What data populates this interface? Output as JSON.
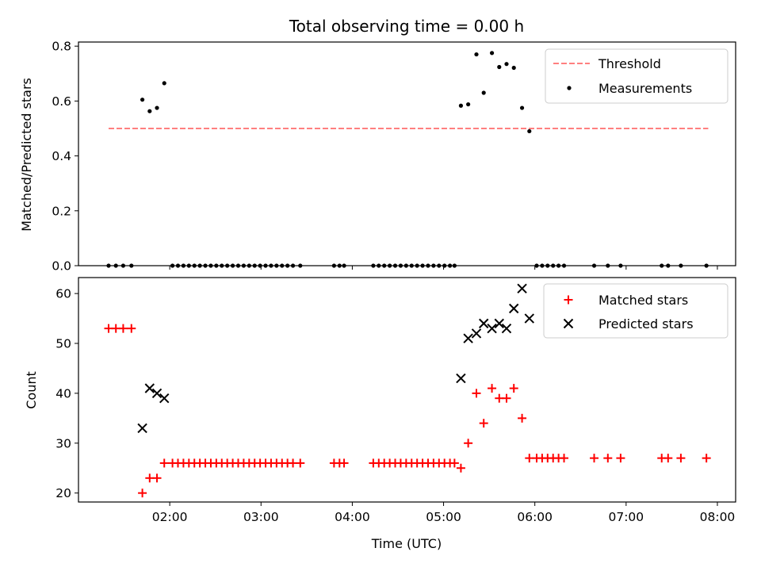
{
  "figure": {
    "title": "Total observing time = 0.00 h"
  },
  "chart_data": [
    {
      "type": "scatter",
      "ylabel": "Matched/Predicted stars",
      "xlim": [
        1.0,
        8.2
      ],
      "ylim": [
        0,
        0.815
      ],
      "xticks": [
        2,
        3,
        4,
        5,
        6,
        7,
        8
      ],
      "yticks": [
        {
          "v": 0.0,
          "label": "0.0"
        },
        {
          "v": 0.2,
          "label": "0.2"
        },
        {
          "v": 0.4,
          "label": "0.4"
        },
        {
          "v": 0.6,
          "label": "0.6"
        },
        {
          "v": 0.8,
          "label": "0.8"
        }
      ],
      "legend_position": "top-right",
      "threshold": {
        "name": "Threshold",
        "value": 0.5,
        "x_start": 1.33,
        "x_end": 7.9,
        "color": "#ff7f7f"
      },
      "series": [
        {
          "name": "Measurements",
          "color": "#000000",
          "x": [
            1.33,
            1.41,
            1.49,
            1.58,
            1.7,
            1.78,
            1.86,
            1.94,
            2.03,
            2.09,
            2.15,
            2.21,
            2.27,
            2.33,
            2.39,
            2.45,
            2.51,
            2.57,
            2.63,
            2.69,
            2.75,
            2.81,
            2.87,
            2.93,
            2.99,
            3.05,
            3.11,
            3.17,
            3.23,
            3.29,
            3.35,
            3.43,
            3.8,
            3.86,
            3.91,
            4.23,
            4.29,
            4.35,
            4.41,
            4.47,
            4.53,
            4.59,
            4.65,
            4.71,
            4.77,
            4.83,
            4.89,
            4.95,
            5.01,
            5.07,
            5.12,
            5.19,
            5.27,
            5.36,
            5.44,
            5.53,
            5.61,
            5.69,
            5.77,
            5.86,
            5.94,
            6.02,
            6.08,
            6.14,
            6.2,
            6.26,
            6.32,
            6.65,
            6.8,
            6.94,
            7.39,
            7.46,
            7.6,
            7.88
          ],
          "y": [
            0,
            0,
            0,
            0,
            0.605,
            0.563,
            0.575,
            0.665,
            0,
            0,
            0,
            0,
            0,
            0,
            0,
            0,
            0,
            0,
            0,
            0,
            0,
            0,
            0,
            0,
            0,
            0,
            0,
            0,
            0,
            0,
            0,
            0,
            0,
            0,
            0,
            0,
            0,
            0,
            0,
            0,
            0,
            0,
            0,
            0,
            0,
            0,
            0,
            0,
            0,
            0,
            0,
            0.583,
            0.588,
            0.77,
            0.63,
            0.775,
            0.724,
            0.735,
            0.721,
            0.575,
            0.49,
            0,
            0,
            0,
            0,
            0,
            0,
            0,
            0,
            0,
            0,
            0,
            0,
            0
          ]
        }
      ]
    },
    {
      "type": "scatter",
      "ylabel": "Count",
      "xlabel": "Time (UTC)",
      "xlim": [
        1.0,
        8.2
      ],
      "ylim": [
        18.2,
        63.2
      ],
      "xticks": [
        {
          "v": 2,
          "label": "02:00"
        },
        {
          "v": 3,
          "label": "03:00"
        },
        {
          "v": 4,
          "label": "04:00"
        },
        {
          "v": 5,
          "label": "05:00"
        },
        {
          "v": 6,
          "label": "06:00"
        },
        {
          "v": 7,
          "label": "07:00"
        },
        {
          "v": 8,
          "label": "08:00"
        }
      ],
      "yticks": [
        {
          "v": 20,
          "label": "20"
        },
        {
          "v": 30,
          "label": "30"
        },
        {
          "v": 40,
          "label": "40"
        },
        {
          "v": 50,
          "label": "50"
        },
        {
          "v": 60,
          "label": "60"
        }
      ],
      "legend_position": "top-right",
      "series": [
        {
          "name": "Matched stars",
          "marker": "plus",
          "color": "#ff0000",
          "x": [
            1.33,
            1.41,
            1.49,
            1.58,
            1.7,
            1.78,
            1.86,
            1.94,
            2.03,
            2.09,
            2.15,
            2.21,
            2.27,
            2.33,
            2.39,
            2.45,
            2.51,
            2.57,
            2.63,
            2.69,
            2.75,
            2.81,
            2.87,
            2.93,
            2.99,
            3.05,
            3.11,
            3.17,
            3.23,
            3.29,
            3.35,
            3.43,
            3.8,
            3.86,
            3.91,
            4.23,
            4.29,
            4.35,
            4.41,
            4.47,
            4.53,
            4.59,
            4.65,
            4.71,
            4.77,
            4.83,
            4.89,
            4.95,
            5.01,
            5.07,
            5.12,
            5.19,
            5.27,
            5.36,
            5.44,
            5.53,
            5.61,
            5.69,
            5.77,
            5.86,
            5.94,
            6.02,
            6.08,
            6.14,
            6.2,
            6.26,
            6.32,
            6.65,
            6.8,
            6.94,
            7.39,
            7.46,
            7.6,
            7.88
          ],
          "y": [
            53,
            53,
            53,
            53,
            20,
            23,
            23,
            26,
            26,
            26,
            26,
            26,
            26,
            26,
            26,
            26,
            26,
            26,
            26,
            26,
            26,
            26,
            26,
            26,
            26,
            26,
            26,
            26,
            26,
            26,
            26,
            26,
            26,
            26,
            26,
            26,
            26,
            26,
            26,
            26,
            26,
            26,
            26,
            26,
            26,
            26,
            26,
            26,
            26,
            26,
            26,
            25,
            30,
            40,
            34,
            41,
            39,
            39,
            41,
            35,
            27,
            27,
            27,
            27,
            27,
            27,
            27,
            27,
            27,
            27,
            27,
            27,
            27,
            27
          ]
        },
        {
          "name": "Predicted stars",
          "marker": "x",
          "color": "#000000",
          "x": [
            1.7,
            1.78,
            1.86,
            1.94,
            5.19,
            5.27,
            5.36,
            5.44,
            5.53,
            5.61,
            5.69,
            5.77,
            5.86,
            5.94
          ],
          "y": [
            33,
            41,
            40,
            39,
            43,
            51,
            52,
            54,
            53,
            54,
            53,
            57,
            61,
            55
          ]
        }
      ]
    }
  ]
}
